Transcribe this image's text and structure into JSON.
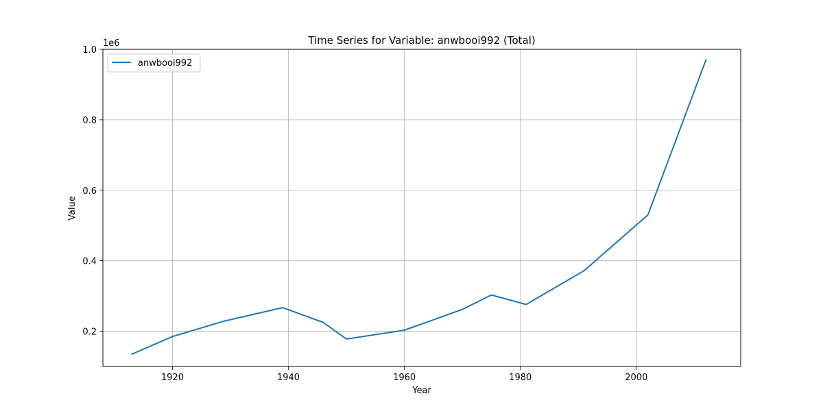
{
  "chart_data": {
    "type": "line",
    "title": "Time Series for Variable: anwbooi992 (Total)",
    "xlabel": "Year",
    "ylabel": "Value",
    "y_offset_label": "1e6",
    "xlim": [
      1908,
      2018
    ],
    "ylim": [
      0.1,
      1.0
    ],
    "x_ticks": [
      1920,
      1940,
      1960,
      1980,
      2000
    ],
    "y_ticks": [
      0.2,
      0.4,
      0.6,
      0.8,
      1.0
    ],
    "y_tick_labels": [
      "0.2",
      "0.4",
      "0.6",
      "0.8",
      "1.0"
    ],
    "grid": true,
    "legend_position": "top-left",
    "series": [
      {
        "name": "anwbooi992",
        "color": "#1f77b4",
        "x": [
          1913,
          1920,
          1929,
          1939,
          1946,
          1950,
          1960,
          1970,
          1975,
          1981,
          1991,
          2002,
          2012
        ],
        "y": [
          0.135,
          0.185,
          0.229,
          0.267,
          0.225,
          0.178,
          0.203,
          0.262,
          0.303,
          0.276,
          0.372,
          0.53,
          0.97
        ]
      }
    ]
  }
}
